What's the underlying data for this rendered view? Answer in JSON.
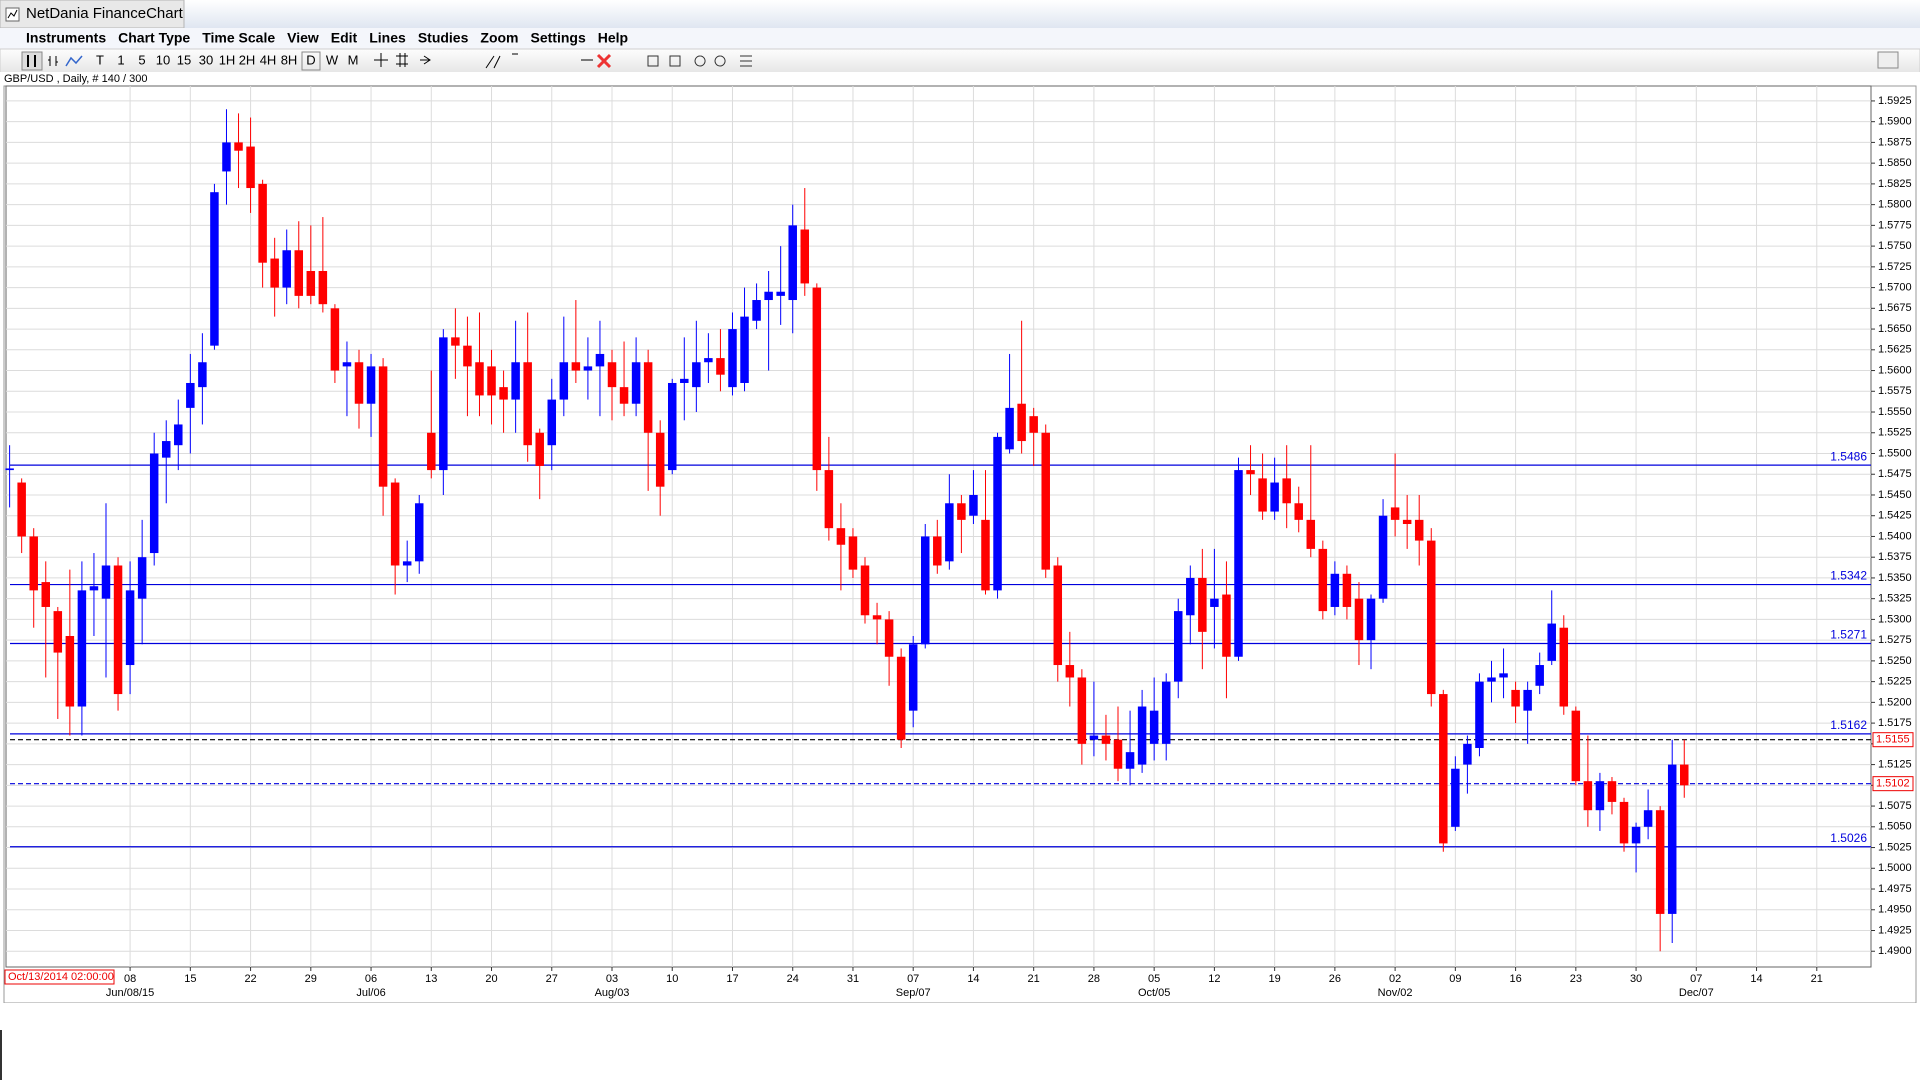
{
  "window": {
    "title": "NetDania FinanceChart",
    "menu": [
      "Instruments",
      "Chart Type",
      "Time Scale",
      "View",
      "Edit",
      "Lines",
      "Studies",
      "Zoom",
      "Settings",
      "Help"
    ],
    "toolbar": [
      "T",
      "1",
      "5",
      "10",
      "15",
      "30",
      "1H",
      "2H",
      "4H",
      "8H",
      "D",
      "W",
      "M"
    ]
  },
  "chart_data": {
    "type": "candlestick",
    "title": "GBP/USD , Daily, # 140 / 300",
    "cursor_date": "Oct/13/2014 02:00:00",
    "up_color": "#0000ff",
    "down_color": "#ff0000",
    "grid": true,
    "x": [
      0,
      1,
      2,
      3,
      4,
      5,
      6,
      7,
      8,
      9,
      10,
      11,
      12,
      13,
      14,
      15,
      16,
      17,
      18,
      19,
      20,
      21,
      22,
      23,
      24,
      25,
      26,
      27,
      28,
      29,
      30,
      31,
      32,
      33,
      34,
      35,
      36,
      37,
      38,
      39,
      40,
      41,
      42,
      43,
      44,
      45,
      46,
      47,
      48,
      49,
      50,
      51,
      52,
      53,
      54,
      55,
      56,
      57,
      58,
      59,
      60,
      61,
      62,
      63,
      64,
      65,
      66,
      67,
      68,
      69,
      70,
      71,
      72,
      73,
      74,
      75,
      76,
      77,
      78,
      79,
      80,
      81,
      82,
      83,
      84,
      85,
      86,
      87,
      88,
      89,
      90,
      91,
      92,
      93,
      94,
      95,
      96,
      97,
      98,
      99,
      100,
      101,
      102,
      103,
      104,
      105,
      106,
      107,
      108,
      109,
      110,
      111,
      112,
      113,
      114,
      115,
      116,
      117,
      118,
      119,
      120,
      121,
      122,
      123,
      124,
      125,
      126,
      127,
      128,
      129,
      130,
      131,
      132,
      133,
      134,
      135,
      136,
      137,
      138,
      139
    ],
    "open": [
      1.548,
      1.5465,
      1.54,
      1.5345,
      1.531,
      1.528,
      1.5195,
      1.5335,
      1.5325,
      1.5365,
      1.5245,
      1.5325,
      1.538,
      1.5495,
      1.551,
      1.5555,
      1.558,
      1.563,
      1.584,
      1.5875,
      1.587,
      1.5825,
      1.5735,
      1.57,
      1.5745,
      1.572,
      1.572,
      1.5675,
      1.5605,
      1.561,
      1.556,
      1.5605,
      1.5465,
      1.5365,
      1.537,
      1.5525,
      1.548,
      1.564,
      1.563,
      1.561,
      1.5605,
      1.558,
      1.5565,
      1.561,
      1.5525,
      1.551,
      1.5565,
      1.561,
      1.56,
      1.5605,
      1.561,
      1.558,
      1.556,
      1.561,
      1.5525,
      1.548,
      1.5585,
      1.558,
      1.561,
      1.5615,
      1.558,
      1.5585,
      1.566,
      1.5685,
      1.569,
      1.5685,
      1.577,
      1.57,
      1.548,
      1.541,
      1.54,
      1.5365,
      1.5305,
      1.53,
      1.5255,
      1.519,
      1.527,
      1.54,
      1.537,
      1.544,
      1.5425,
      1.542,
      1.5335,
      1.5505,
      1.556,
      1.5545,
      1.5525,
      1.5365,
      1.5245,
      1.523,
      1.5155,
      1.516,
      1.5155,
      1.512,
      1.5125,
      1.515,
      1.515,
      1.5225,
      1.5305,
      1.535,
      1.5315,
      1.533,
      1.5255,
      1.548,
      1.547,
      1.543,
      1.547,
      1.544,
      1.542,
      1.5385,
      1.5315,
      1.5355,
      1.5325,
      1.5275,
      1.5325,
      1.5435,
      1.542,
      1.542,
      1.5395,
      1.521,
      1.505,
      1.5125,
      1.5145,
      1.5225,
      1.523,
      1.5215,
      1.519,
      1.522,
      1.525,
      1.529,
      1.519,
      1.5105,
      1.507,
      1.5105,
      1.508,
      1.503,
      1.505,
      1.507,
      1.4945,
      1.5125
    ],
    "high": [
      1.551,
      1.547,
      1.541,
      1.537,
      1.5315,
      1.536,
      1.537,
      1.538,
      1.544,
      1.5375,
      1.537,
      1.542,
      1.5525,
      1.554,
      1.5565,
      1.562,
      1.5645,
      1.5825,
      1.5915,
      1.591,
      1.5905,
      1.583,
      1.576,
      1.577,
      1.578,
      1.5775,
      1.5785,
      1.568,
      1.5635,
      1.5625,
      1.562,
      1.5615,
      1.547,
      1.5395,
      1.545,
      1.56,
      1.565,
      1.5675,
      1.5665,
      1.567,
      1.5625,
      1.56,
      1.566,
      1.567,
      1.553,
      1.559,
      1.5665,
      1.5685,
      1.564,
      1.566,
      1.5625,
      1.5635,
      1.564,
      1.5625,
      1.554,
      1.559,
      1.564,
      1.566,
      1.5645,
      1.565,
      1.567,
      1.57,
      1.5705,
      1.572,
      1.575,
      1.58,
      1.582,
      1.5705,
      1.552,
      1.544,
      1.541,
      1.5375,
      1.532,
      1.531,
      1.5265,
      1.528,
      1.5415,
      1.542,
      1.5475,
      1.545,
      1.548,
      1.548,
      1.5525,
      1.562,
      1.566,
      1.5555,
      1.5535,
      1.5375,
      1.5285,
      1.524,
      1.5225,
      1.5185,
      1.5195,
      1.519,
      1.5215,
      1.523,
      1.5235,
      1.5325,
      1.5365,
      1.5385,
      1.5385,
      1.537,
      1.5495,
      1.551,
      1.55,
      1.5495,
      1.551,
      1.546,
      1.551,
      1.5395,
      1.537,
      1.5365,
      1.5345,
      1.533,
      1.5445,
      1.55,
      1.545,
      1.545,
      1.541,
      1.5215,
      1.5135,
      1.516,
      1.5235,
      1.525,
      1.5265,
      1.5225,
      1.5225,
      1.526,
      1.5335,
      1.5305,
      1.5195,
      1.516,
      1.5115,
      1.511,
      1.5085,
      1.5055,
      1.5095,
      1.5075,
      1.5155,
      1.5155
    ],
    "low": [
      1.5435,
      1.538,
      1.529,
      1.523,
      1.518,
      1.516,
      1.516,
      1.528,
      1.523,
      1.519,
      1.521,
      1.527,
      1.5365,
      1.544,
      1.548,
      1.55,
      1.5535,
      1.5625,
      1.58,
      1.582,
      1.579,
      1.57,
      1.5665,
      1.568,
      1.5675,
      1.568,
      1.567,
      1.5585,
      1.5545,
      1.553,
      1.552,
      1.5425,
      1.533,
      1.5345,
      1.5355,
      1.547,
      1.545,
      1.559,
      1.5545,
      1.5545,
      1.5535,
      1.5525,
      1.5525,
      1.549,
      1.5445,
      1.548,
      1.5545,
      1.5585,
      1.5565,
      1.5545,
      1.554,
      1.5545,
      1.5545,
      1.5455,
      1.5425,
      1.5475,
      1.554,
      1.555,
      1.5585,
      1.5575,
      1.557,
      1.5575,
      1.565,
      1.56,
      1.5655,
      1.5645,
      1.569,
      1.5455,
      1.5395,
      1.5335,
      1.535,
      1.5295,
      1.527,
      1.522,
      1.5145,
      1.517,
      1.5265,
      1.5355,
      1.536,
      1.538,
      1.5415,
      1.533,
      1.5325,
      1.55,
      1.55,
      1.5485,
      1.535,
      1.5225,
      1.5195,
      1.5125,
      1.5135,
      1.513,
      1.5105,
      1.51,
      1.5115,
      1.513,
      1.513,
      1.5205,
      1.527,
      1.524,
      1.5265,
      1.5205,
      1.525,
      1.545,
      1.542,
      1.542,
      1.541,
      1.5405,
      1.5375,
      1.53,
      1.5305,
      1.53,
      1.5245,
      1.524,
      1.532,
      1.54,
      1.5385,
      1.5365,
      1.5195,
      1.502,
      1.5045,
      1.509,
      1.5135,
      1.52,
      1.5205,
      1.5175,
      1.515,
      1.521,
      1.5245,
      1.5185,
      1.51,
      1.505,
      1.5045,
      1.5065,
      1.502,
      1.4995,
      1.5035,
      1.49,
      1.491,
      1.5085
    ],
    "close": [
      1.5482,
      1.54,
      1.5335,
      1.5315,
      1.526,
      1.5195,
      1.5335,
      1.534,
      1.5365,
      1.521,
      1.5335,
      1.5375,
      1.55,
      1.5515,
      1.5535,
      1.5585,
      1.561,
      1.5815,
      1.5875,
      1.5865,
      1.582,
      1.573,
      1.57,
      1.5745,
      1.569,
      1.569,
      1.568,
      1.56,
      1.561,
      1.556,
      1.5605,
      1.546,
      1.5365,
      1.537,
      1.544,
      1.548,
      1.564,
      1.563,
      1.5605,
      1.557,
      1.557,
      1.5565,
      1.561,
      1.551,
      1.5485,
      1.5565,
      1.561,
      1.56,
      1.5605,
      1.562,
      1.558,
      1.556,
      1.561,
      1.5525,
      1.546,
      1.5585,
      1.559,
      1.561,
      1.5615,
      1.5595,
      1.565,
      1.5665,
      1.5685,
      1.5695,
      1.5695,
      1.5775,
      1.5705,
      1.548,
      1.541,
      1.539,
      1.536,
      1.5305,
      1.53,
      1.5255,
      1.5155,
      1.527,
      1.54,
      1.5365,
      1.544,
      1.542,
      1.545,
      1.5335,
      1.552,
      1.5555,
      1.5515,
      1.5525,
      1.536,
      1.5245,
      1.523,
      1.515,
      1.516,
      1.515,
      1.512,
      1.514,
      1.5195,
      1.519,
      1.5225,
      1.531,
      1.535,
      1.5285,
      1.5325,
      1.5255,
      1.548,
      1.5475,
      1.543,
      1.5465,
      1.544,
      1.542,
      1.5385,
      1.531,
      1.5355,
      1.5315,
      1.5275,
      1.5325,
      1.5425,
      1.542,
      1.5415,
      1.5395,
      1.521,
      1.503,
      1.512,
      1.515,
      1.5225,
      1.523,
      1.5235,
      1.5195,
      1.5215,
      1.5245,
      1.5295,
      1.5195,
      1.5105,
      1.507,
      1.5105,
      1.508,
      1.503,
      1.505,
      1.507,
      1.4945,
      1.5125,
      1.51
    ],
    "xlim": [
      -0.3,
      154.5
    ],
    "xticks": [
      {
        "value": 10,
        "label": "08"
      },
      {
        "value": 15,
        "label": "15"
      },
      {
        "value": 20,
        "label": "22"
      },
      {
        "value": 25,
        "label": "29"
      },
      {
        "value": 30,
        "label": "06"
      },
      {
        "value": 35,
        "label": "13"
      },
      {
        "value": 40,
        "label": "20"
      },
      {
        "value": 45,
        "label": "27"
      },
      {
        "value": 50,
        "label": "03"
      },
      {
        "value": 55,
        "label": "10"
      },
      {
        "value": 60,
        "label": "17"
      },
      {
        "value": 65,
        "label": "24"
      },
      {
        "value": 70,
        "label": "31"
      },
      {
        "value": 75,
        "label": "07"
      },
      {
        "value": 80,
        "label": "14"
      },
      {
        "value": 85,
        "label": "21"
      },
      {
        "value": 90,
        "label": "28"
      },
      {
        "value": 95,
        "label": "05"
      },
      {
        "value": 100,
        "label": "12"
      },
      {
        "value": 105,
        "label": "19"
      },
      {
        "value": 110,
        "label": "26"
      },
      {
        "value": 115,
        "label": "02"
      },
      {
        "value": 120,
        "label": "09"
      },
      {
        "value": 125,
        "label": "16"
      },
      {
        "value": 130,
        "label": "23"
      },
      {
        "value": 135,
        "label": "30"
      },
      {
        "value": 140,
        "label": "07"
      },
      {
        "value": 145,
        "label": "14"
      },
      {
        "value": 150,
        "label": "21"
      }
    ],
    "xlabels2": [
      {
        "value": 10,
        "label": "Jun/08/15"
      },
      {
        "value": 30,
        "label": "Jul/06"
      },
      {
        "value": 50,
        "label": "Aug/03"
      },
      {
        "value": 75,
        "label": "Sep/07"
      },
      {
        "value": 95,
        "label": "Oct/05"
      },
      {
        "value": 115,
        "label": "Nov/02"
      },
      {
        "value": 140,
        "label": "Dec/07"
      }
    ],
    "ylim": [
      1.4881,
      1.5943
    ],
    "yticks": [
      {
        "value": 1.49,
        "label": "1.4900"
      },
      1.4925,
      {
        "value": 1.495,
        "label": "1.4950"
      },
      1.4975,
      {
        "value": 1.5,
        "label": "1.5000"
      },
      1.5025,
      {
        "value": 1.505,
        "label": "1.5050"
      },
      1.5075,
      {
        "value": 1.51,
        "label": "1.5100"
      },
      1.5125,
      {
        "value": 1.515,
        "label": "1.5150"
      },
      1.5175,
      {
        "value": 1.52,
        "label": "1.5200"
      },
      1.5225,
      {
        "value": 1.525,
        "label": "1.5250"
      },
      1.5275,
      {
        "value": 1.53,
        "label": "1.5300"
      },
      1.5325,
      {
        "value": 1.535,
        "label": "1.5350"
      },
      1.5375,
      {
        "value": 1.54,
        "label": "1.5400"
      },
      1.5425,
      {
        "value": 1.545,
        "label": "1.5450"
      },
      1.5475,
      {
        "value": 1.55,
        "label": "1.5500"
      },
      1.5525,
      {
        "value": 1.555,
        "label": "1.5550"
      },
      1.5575,
      {
        "value": 1.56,
        "label": "1.5600"
      },
      1.5625,
      {
        "value": 1.565,
        "label": "1.5650"
      },
      1.5675,
      {
        "value": 1.57,
        "label": "1.5700"
      },
      1.5725,
      {
        "value": 1.575,
        "label": "1.5750"
      },
      1.5775,
      {
        "value": 1.58,
        "label": "1.5800"
      },
      1.5825,
      {
        "value": 1.585,
        "label": "1.5850"
      },
      1.5875,
      {
        "value": 1.59,
        "label": "1.5900"
      },
      1.5925
    ],
    "levels": [
      1.5486,
      1.5342,
      1.5271,
      1.5162,
      1.5026
    ],
    "levels_color": "#0000dd",
    "last_price": 1.5155,
    "last_price_color": "#000000",
    "marker_price": 1.5102,
    "marker_price_color": "#0000dd"
  }
}
